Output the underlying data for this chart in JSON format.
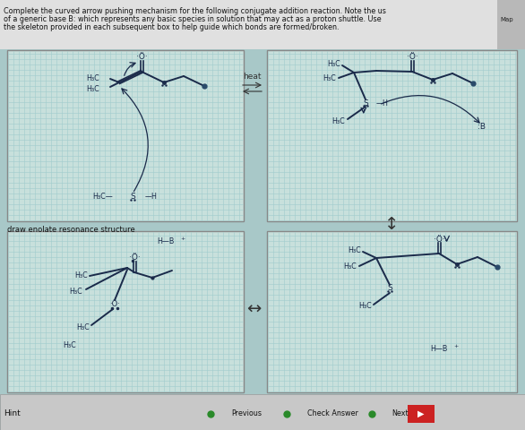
{
  "page_bg": "#a8c8c8",
  "header_bg": "#e0e0e0",
  "box_bg": "#c8e0dc",
  "grid_color": "#a0cccc",
  "box_border": "#888888",
  "mol_color": "#1a2a4a",
  "text_color": "#111111",
  "header_text_line1": "Complete the curved arrow pushing mechanism for the following conjugate addition reaction. Note the us",
  "header_text_line2": "of a generic base B: which represents any basic species in solution that may act as a proton shuttle. Use",
  "header_text_line3": "the skeleton provided in each subsequent box to help guide which bonds are formed/broken.",
  "label_enolate": "draw enolate resonance structure",
  "bottom_bar_bg": "#c8c8c8",
  "hint_text": "Hint",
  "map_label": "Map",
  "figsize": [
    5.86,
    4.8
  ],
  "dpi": 100
}
